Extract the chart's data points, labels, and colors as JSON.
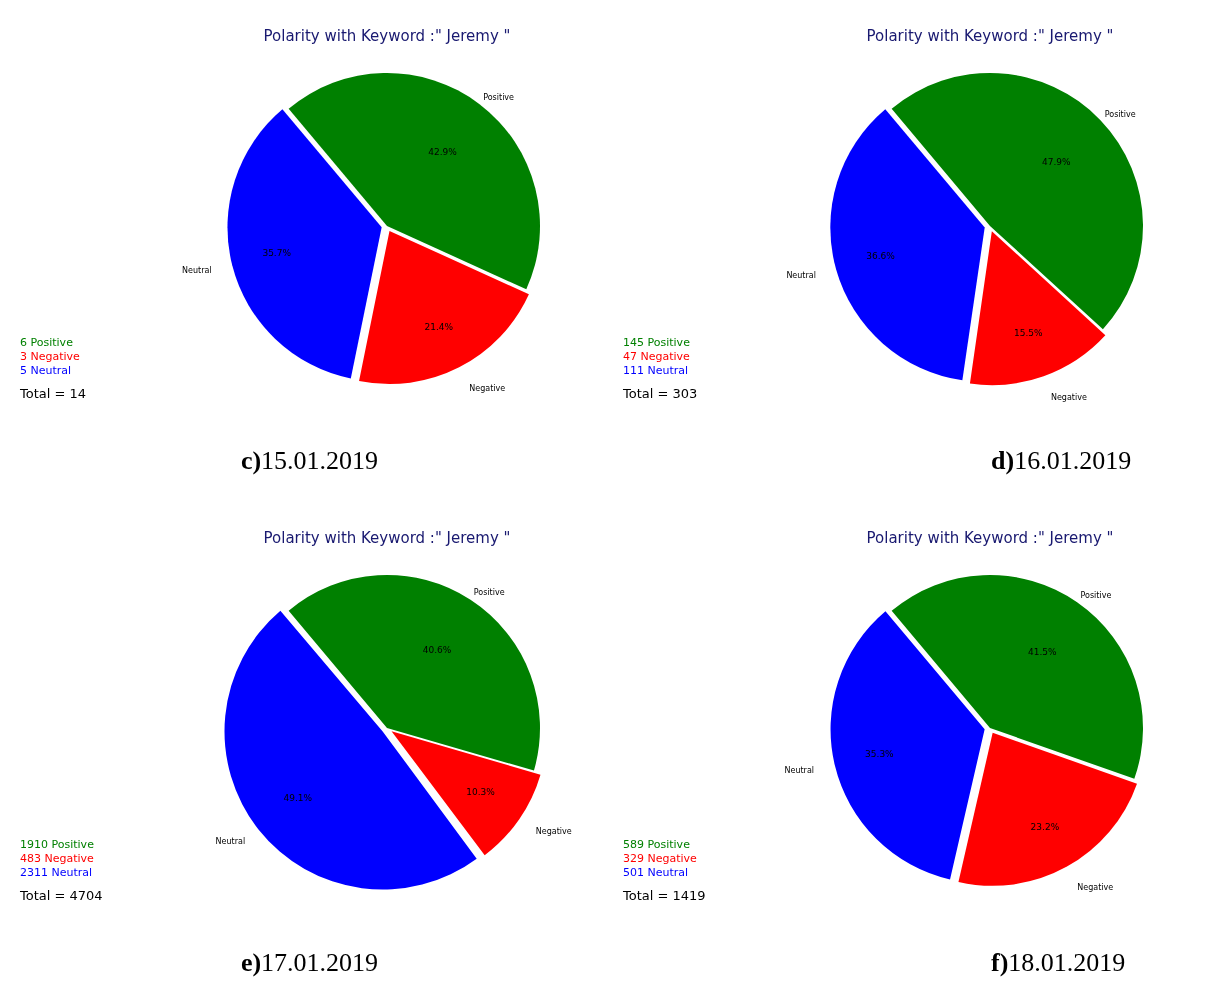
{
  "chart_data": [
    {
      "type": "pie",
      "title": "Polarity with Keyword :\" Jeremy \"",
      "categories": [
        "Positive",
        "Negative",
        "Neutral"
      ],
      "values": [
        42.9,
        21.4,
        35.7
      ],
      "colors": [
        "#008000",
        "#ff0000",
        "#0000ff"
      ],
      "value_labels": [
        "42.9%",
        "21.4%",
        "35.7%"
      ],
      "annotations": [
        "6 Positive",
        "3 Negative",
        "5 Neutral",
        "Total = 14",
        "c)15.01.2019"
      ]
    },
    {
      "type": "pie",
      "title": "Polarity with Keyword :\" Jeremy \"",
      "categories": [
        "Positive",
        "Negative",
        "Neutral"
      ],
      "values": [
        47.9,
        15.5,
        36.6
      ],
      "colors": [
        "#008000",
        "#ff0000",
        "#0000ff"
      ],
      "value_labels": [
        "47.9%",
        "15.5%",
        "36.6%"
      ],
      "annotations": [
        "145 Positive",
        "47 Negative",
        "111 Neutral",
        "Total = 303",
        "d)16.01.2019"
      ]
    },
    {
      "type": "pie",
      "title": "Polarity with Keyword :\" Jeremy \"",
      "categories": [
        "Positive",
        "Negative",
        "Neutral"
      ],
      "values": [
        40.6,
        10.3,
        49.1
      ],
      "colors": [
        "#008000",
        "#ff0000",
        "#0000ff"
      ],
      "value_labels": [
        "40.6%",
        "10.3%",
        "49.1%"
      ],
      "annotations": [
        "1910 Positive",
        "483 Negative",
        "2311 Neutral",
        "Total = 4704",
        "e)17.01.2019"
      ]
    },
    {
      "type": "pie",
      "title": "Polarity with Keyword :\" Jeremy \"",
      "categories": [
        "Positive",
        "Negative",
        "Neutral"
      ],
      "values": [
        41.5,
        23.2,
        35.3
      ],
      "colors": [
        "#008000",
        "#ff0000",
        "#0000ff"
      ],
      "value_labels": [
        "41.5%",
        "23.2%",
        "35.3%"
      ],
      "annotations": [
        "589 Positive",
        "329 Negative",
        "501 Neutral",
        "Total = 1419",
        "f)18.01.2019"
      ]
    }
  ]
}
